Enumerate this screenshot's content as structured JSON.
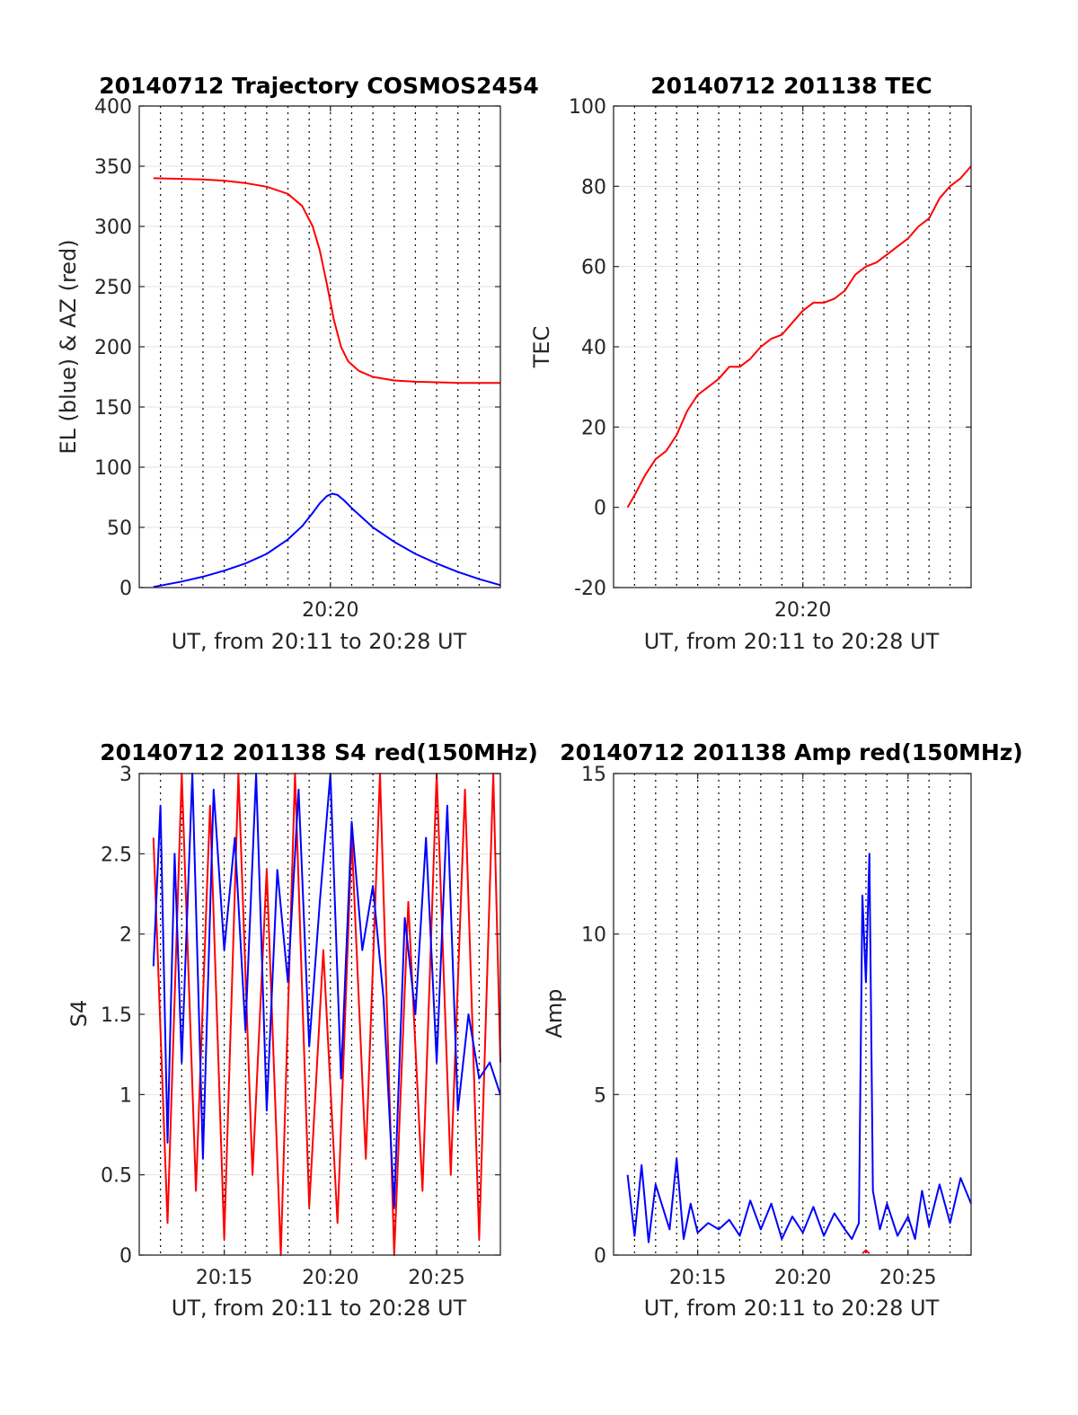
{
  "chart_data": [
    {
      "type": "line",
      "title": "20140712 Trajectory COSMOS2454",
      "xlabel": "UT, from 20:11 to 20:28 UT",
      "ylabel": "EL (blue) & AZ (red)",
      "xlim": [
        "20:11",
        "20:28"
      ],
      "ylim": [
        0,
        400
      ],
      "xticks": [
        "20:20"
      ],
      "yticks": [
        0,
        50,
        100,
        150,
        200,
        250,
        300,
        350,
        400
      ],
      "grid": true,
      "series": [
        {
          "color": "#ff0000",
          "x": [
            "20:11:40",
            "20:13:00",
            "20:14:00",
            "20:15:00",
            "20:16:00",
            "20:17:00",
            "20:18:00",
            "20:18:40",
            "20:19:10",
            "20:19:30",
            "20:19:50",
            "20:20:10",
            "20:20:30",
            "20:20:50",
            "20:21:20",
            "20:22:00",
            "20:23:00",
            "20:24:00",
            "20:25:00",
            "20:26:00",
            "20:27:00",
            "20:28:00"
          ],
          "values": [
            340,
            339.5,
            339,
            338,
            336,
            333,
            327,
            317,
            300,
            280,
            252,
            222,
            200,
            188,
            180,
            175,
            172,
            171,
            170.5,
            170,
            170,
            170
          ]
        },
        {
          "color": "#0000ff",
          "x": [
            "20:11:40",
            "20:13:00",
            "20:14:00",
            "20:15:00",
            "20:16:00",
            "20:17:00",
            "20:18:00",
            "20:18:40",
            "20:19:10",
            "20:19:30",
            "20:19:50",
            "20:20:05",
            "20:20:20",
            "20:20:40",
            "20:21:00",
            "20:21:30",
            "20:22:00",
            "20:23:00",
            "20:24:00",
            "20:25:00",
            "20:26:00",
            "20:27:00",
            "20:28:00"
          ],
          "values": [
            0.5,
            5,
            9,
            14,
            20,
            28,
            40,
            51,
            62,
            70,
            76,
            78,
            77,
            72,
            66,
            58,
            50,
            38,
            28,
            20,
            13,
            7,
            2
          ]
        }
      ]
    },
    {
      "type": "line",
      "title": "20140712 201138 TEC",
      "xlabel": "UT, from 20:11 to 20:28 UT",
      "ylabel": "TEC",
      "xlim": [
        "20:11",
        "20:28"
      ],
      "ylim": [
        -20,
        100
      ],
      "xticks": [
        "20:20"
      ],
      "yticks": [
        -20,
        0,
        20,
        40,
        60,
        80,
        100
      ],
      "grid": true,
      "series": [
        {
          "color": "#ff0000",
          "x": [
            "20:11:40",
            "20:12:00",
            "20:12:30",
            "20:13:00",
            "20:13:30",
            "20:14:00",
            "20:14:30",
            "20:15:00",
            "20:15:30",
            "20:16:00",
            "20:16:30",
            "20:17:00",
            "20:17:30",
            "20:18:00",
            "20:18:30",
            "20:19:00",
            "20:19:30",
            "20:20:00",
            "20:20:30",
            "20:21:00",
            "20:21:30",
            "20:22:00",
            "20:22:30",
            "20:23:00",
            "20:23:30",
            "20:24:00",
            "20:24:30",
            "20:25:00",
            "20:25:30",
            "20:26:00",
            "20:26:30",
            "20:27:00",
            "20:27:30",
            "20:28:00"
          ],
          "values": [
            0,
            3,
            8,
            12,
            14,
            18,
            24,
            28,
            30,
            32,
            35,
            35,
            37,
            40,
            42,
            43,
            46,
            49,
            51,
            51,
            52,
            54,
            58,
            60,
            61,
            63,
            65,
            67,
            70,
            72,
            77,
            80,
            82,
            85
          ]
        }
      ]
    },
    {
      "type": "line",
      "title": "20140712 201138 S4 red(150MHz)",
      "xlabel": "UT, from 20:11 to 20:28 UT",
      "ylabel": "S4",
      "xlim": [
        "20:11",
        "20:28"
      ],
      "ylim": [
        0,
        3
      ],
      "xticks": [
        "20:15",
        "20:20",
        "20:25"
      ],
      "yticks": [
        0,
        0.5,
        1,
        1.5,
        2,
        2.5,
        3
      ],
      "grid": true,
      "series": [
        {
          "color": "#ff0000",
          "x": [
            "20:11:40",
            "20:12:20",
            "20:13:00",
            "20:13:40",
            "20:14:20",
            "20:15:00",
            "20:15:40",
            "20:16:20",
            "20:17:00",
            "20:17:40",
            "20:18:20",
            "20:19:00",
            "20:19:40",
            "20:20:20",
            "20:21:00",
            "20:21:40",
            "20:22:20",
            "20:23:00",
            "20:23:40",
            "20:24:20",
            "20:25:00",
            "20:25:40",
            "20:26:20",
            "20:27:00",
            "20:27:40",
            "20:28:00"
          ],
          "values": [
            2.6,
            0.2,
            3.0,
            0.4,
            2.8,
            0.1,
            3.0,
            0.5,
            2.4,
            0.0,
            3.0,
            0.3,
            1.9,
            0.2,
            2.6,
            0.6,
            3.0,
            0.0,
            2.2,
            0.4,
            3.0,
            0.5,
            2.9,
            0.1,
            3.0,
            1.2
          ]
        },
        {
          "color": "#0000ff",
          "x": [
            "20:11:40",
            "20:12:00",
            "20:12:20",
            "20:12:40",
            "20:13:00",
            "20:13:30",
            "20:14:00",
            "20:14:30",
            "20:15:00",
            "20:15:30",
            "20:16:00",
            "20:16:30",
            "20:17:00",
            "20:17:30",
            "20:18:00",
            "20:18:30",
            "20:19:00",
            "20:19:30",
            "20:20:00",
            "20:20:30",
            "20:21:00",
            "20:21:30",
            "20:22:00",
            "20:22:30",
            "20:23:00",
            "20:23:30",
            "20:24:00",
            "20:24:30",
            "20:25:00",
            "20:25:30",
            "20:26:00",
            "20:26:30",
            "20:27:00",
            "20:27:30",
            "20:28:00"
          ],
          "values": [
            1.8,
            2.8,
            0.7,
            2.5,
            1.2,
            3.0,
            0.6,
            2.9,
            1.9,
            2.6,
            1.4,
            3.0,
            0.9,
            2.4,
            1.7,
            2.9,
            1.3,
            2.2,
            3.0,
            1.1,
            2.7,
            1.9,
            2.3,
            1.6,
            0.3,
            2.1,
            1.5,
            2.6,
            1.2,
            2.8,
            0.9,
            1.5,
            1.1,
            1.2,
            1.0
          ]
        }
      ]
    },
    {
      "type": "line",
      "title": "20140712 201138 Amp red(150MHz)",
      "xlabel": "UT, from 20:11 to 20:28 UT",
      "ylabel": "Amp",
      "xlim": [
        "20:11",
        "20:28"
      ],
      "ylim": [
        0,
        15
      ],
      "xticks": [
        "20:15",
        "20:20",
        "20:25"
      ],
      "yticks": [
        0,
        5,
        10,
        15
      ],
      "grid": true,
      "series": [
        {
          "color": "#0000ff",
          "x": [
            "20:11:40",
            "20:12:00",
            "20:12:20",
            "20:12:40",
            "20:13:00",
            "20:13:20",
            "20:13:40",
            "20:14:00",
            "20:14:20",
            "20:14:40",
            "20:15:00",
            "20:15:30",
            "20:16:00",
            "20:16:30",
            "20:17:00",
            "20:17:30",
            "20:18:00",
            "20:18:30",
            "20:19:00",
            "20:19:30",
            "20:20:00",
            "20:20:30",
            "20:21:00",
            "20:21:30",
            "20:22:00",
            "20:22:20",
            "20:22:40",
            "20:22:50",
            "20:23:00",
            "20:23:10",
            "20:23:20",
            "20:23:40",
            "20:24:00",
            "20:24:30",
            "20:25:00",
            "20:25:20",
            "20:25:40",
            "20:26:00",
            "20:26:30",
            "20:27:00",
            "20:27:30",
            "20:28:00"
          ],
          "values": [
            2.5,
            0.6,
            2.8,
            0.4,
            2.2,
            1.5,
            0.8,
            3.0,
            0.5,
            1.6,
            0.7,
            1.0,
            0.8,
            1.1,
            0.6,
            1.7,
            0.8,
            1.6,
            0.5,
            1.2,
            0.7,
            1.5,
            0.6,
            1.3,
            0.8,
            0.5,
            1.0,
            11.2,
            8.5,
            12.5,
            2.0,
            0.8,
            1.6,
            0.6,
            1.2,
            0.5,
            2.0,
            0.9,
            2.2,
            1.0,
            2.4,
            1.6
          ]
        },
        {
          "color": "#ff0000",
          "x": [
            "20:22:50",
            "20:23:00",
            "20:23:10"
          ],
          "values": [
            0.05,
            0.15,
            0.05
          ]
        }
      ]
    }
  ]
}
